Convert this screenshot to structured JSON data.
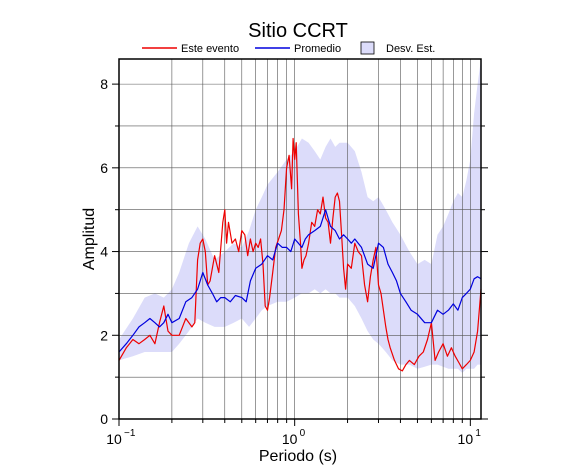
{
  "chart_data": {
    "type": "line",
    "title": "Sitio CCRT",
    "xlabel": "Periodo (s)",
    "ylabel": "Amplitud",
    "x_scale": "log",
    "xlim": [
      0.1,
      11.5
    ],
    "ylim": [
      0,
      8.6
    ],
    "x_ticks": [
      {
        "base": "10",
        "exp": "−1"
      },
      {
        "base": "10",
        "exp": "0"
      },
      {
        "base": "10",
        "exp": "1"
      }
    ],
    "y_ticks": [
      "0",
      "2",
      "4",
      "6",
      "8"
    ],
    "grid": true,
    "legend_position": "top",
    "legend": [
      {
        "label": "Este evento",
        "kind": "line",
        "color": "#ee0000"
      },
      {
        "label": "Promedio",
        "kind": "line",
        "color": "#0000dd"
      },
      {
        "label": "Desv. Est.",
        "kind": "patch",
        "color": "#dcdcfa"
      }
    ],
    "series": [
      {
        "name": "Este evento",
        "color": "#ee0000",
        "x": [
          0.1,
          0.11,
          0.12,
          0.13,
          0.14,
          0.15,
          0.16,
          0.17,
          0.18,
          0.19,
          0.2,
          0.22,
          0.24,
          0.26,
          0.27,
          0.28,
          0.29,
          0.3,
          0.31,
          0.32,
          0.33,
          0.35,
          0.37,
          0.39,
          0.4,
          0.41,
          0.42,
          0.44,
          0.46,
          0.48,
          0.5,
          0.52,
          0.54,
          0.56,
          0.58,
          0.6,
          0.62,
          0.64,
          0.66,
          0.68,
          0.7,
          0.72,
          0.75,
          0.78,
          0.81,
          0.84,
          0.87,
          0.9,
          0.93,
          0.96,
          0.98,
          1.0,
          1.02,
          1.05,
          1.08,
          1.1,
          1.13,
          1.16,
          1.2,
          1.25,
          1.3,
          1.35,
          1.4,
          1.45,
          1.5,
          1.55,
          1.6,
          1.65,
          1.7,
          1.75,
          1.8,
          1.85,
          1.9,
          1.95,
          2.0,
          2.1,
          2.2,
          2.3,
          2.4,
          2.5,
          2.6,
          2.7,
          2.8,
          2.9,
          3.0,
          3.1,
          3.2,
          3.3,
          3.4,
          3.5,
          3.7,
          3.9,
          4.1,
          4.3,
          4.5,
          4.8,
          5.1,
          5.4,
          5.7,
          6.0,
          6.3,
          6.6,
          7.0,
          7.4,
          7.8,
          8.2,
          8.6,
          9.0,
          9.5,
          10.0,
          10.5,
          11.0,
          11.5
        ],
        "y": [
          1.4,
          1.7,
          1.9,
          1.8,
          1.9,
          2.0,
          1.8,
          2.3,
          2.7,
          2.1,
          2.0,
          2.0,
          2.4,
          2.2,
          2.3,
          3.8,
          4.2,
          4.3,
          4.0,
          3.2,
          3.3,
          3.9,
          3.5,
          4.7,
          5.0,
          4.2,
          4.7,
          4.2,
          4.3,
          4.0,
          4.5,
          4.4,
          3.9,
          4.3,
          4.0,
          4.2,
          4.1,
          4.3,
          3.7,
          2.7,
          2.6,
          2.9,
          3.5,
          4.1,
          4.3,
          4.5,
          5.0,
          6.0,
          6.3,
          5.5,
          6.7,
          6.2,
          6.6,
          4.9,
          4.2,
          3.6,
          3.8,
          3.9,
          4.2,
          4.7,
          4.6,
          5.0,
          4.9,
          5.3,
          4.8,
          4.7,
          4.2,
          4.8,
          5.3,
          5.4,
          5.2,
          4.4,
          3.6,
          3.1,
          3.7,
          3.6,
          4.2,
          4.0,
          3.9,
          3.2,
          2.8,
          3.4,
          3.8,
          4.1,
          3.2,
          3.0,
          2.6,
          2.2,
          1.9,
          1.7,
          1.4,
          1.2,
          1.15,
          1.3,
          1.4,
          1.3,
          1.5,
          1.6,
          1.9,
          2.3,
          1.4,
          1.6,
          1.8,
          1.5,
          1.7,
          1.5,
          1.35,
          1.2,
          1.3,
          1.4,
          1.6,
          2.1,
          3.1
        ]
      },
      {
        "name": "Promedio",
        "color": "#0000dd",
        "x": [
          0.1,
          0.11,
          0.12,
          0.13,
          0.14,
          0.15,
          0.16,
          0.17,
          0.18,
          0.19,
          0.2,
          0.22,
          0.24,
          0.26,
          0.28,
          0.3,
          0.32,
          0.34,
          0.36,
          0.38,
          0.4,
          0.43,
          0.46,
          0.5,
          0.53,
          0.56,
          0.6,
          0.65,
          0.7,
          0.75,
          0.8,
          0.85,
          0.9,
          0.95,
          1.0,
          1.05,
          1.1,
          1.15,
          1.2,
          1.3,
          1.4,
          1.5,
          1.6,
          1.7,
          1.8,
          1.9,
          2.0,
          2.1,
          2.2,
          2.4,
          2.6,
          2.8,
          3.0,
          3.2,
          3.4,
          3.6,
          3.8,
          4.0,
          4.3,
          4.6,
          5.0,
          5.5,
          6.0,
          6.5,
          7.0,
          7.5,
          8.0,
          8.5,
          9.0,
          9.5,
          10.0,
          10.5,
          11.0,
          11.5
        ],
        "y": [
          1.6,
          1.8,
          2.0,
          2.2,
          2.3,
          2.4,
          2.3,
          2.2,
          2.3,
          2.5,
          2.3,
          2.4,
          2.8,
          2.9,
          3.1,
          3.5,
          3.2,
          3.0,
          2.8,
          2.9,
          2.9,
          2.8,
          2.95,
          2.9,
          2.8,
          3.3,
          3.6,
          3.7,
          3.9,
          3.8,
          4.2,
          4.1,
          4.1,
          4.0,
          4.3,
          4.2,
          4.1,
          4.3,
          4.4,
          4.5,
          4.6,
          5.0,
          4.6,
          4.5,
          4.3,
          4.4,
          4.3,
          4.2,
          4.3,
          4.1,
          3.7,
          3.6,
          4.2,
          4.1,
          3.7,
          3.5,
          3.3,
          3.0,
          2.8,
          2.6,
          2.5,
          2.3,
          2.3,
          2.6,
          2.5,
          2.6,
          2.75,
          2.6,
          2.9,
          3.0,
          3.1,
          3.35,
          3.4,
          3.35
        ]
      }
    ],
    "band": {
      "name": "Desv. Est.",
      "color": "#dcdcfa",
      "x": [
        0.1,
        0.12,
        0.14,
        0.16,
        0.18,
        0.2,
        0.22,
        0.25,
        0.28,
        0.31,
        0.35,
        0.4,
        0.45,
        0.5,
        0.55,
        0.6,
        0.65,
        0.7,
        0.8,
        0.9,
        1.0,
        1.1,
        1.2,
        1.3,
        1.4,
        1.5,
        1.6,
        1.7,
        1.8,
        2.0,
        2.2,
        2.4,
        2.6,
        2.8,
        3.0,
        3.3,
        3.6,
        4.0,
        4.5,
        5.0,
        5.5,
        6.0,
        6.5,
        7.0,
        7.5,
        8.0,
        8.5,
        9.0,
        9.5,
        10.0,
        10.5,
        11.0,
        11.5
      ],
      "upper": [
        1.9,
        2.4,
        2.9,
        3.0,
        2.9,
        3.1,
        3.5,
        4.2,
        4.6,
        4.3,
        3.8,
        4.0,
        4.2,
        4.1,
        4.5,
        5.0,
        5.3,
        5.6,
        5.9,
        6.2,
        6.4,
        6.7,
        6.6,
        6.4,
        6.2,
        6.5,
        6.7,
        6.5,
        6.6,
        6.6,
        6.4,
        5.9,
        5.3,
        5.2,
        5.3,
        5.0,
        4.7,
        4.4,
        4.0,
        3.7,
        3.8,
        3.7,
        4.4,
        4.6,
        4.9,
        5.2,
        5.4,
        5.3,
        5.7,
        6.2,
        7.3,
        8.0,
        8.6
      ],
      "lower": [
        1.4,
        1.5,
        1.6,
        1.6,
        1.6,
        1.6,
        1.8,
        2.1,
        2.4,
        2.3,
        2.2,
        2.2,
        2.3,
        2.4,
        2.2,
        2.4,
        2.6,
        2.7,
        2.8,
        2.8,
        2.9,
        3.0,
        3.0,
        3.1,
        3.0,
        3.1,
        3.0,
        3.0,
        2.9,
        2.9,
        2.7,
        2.4,
        2.1,
        1.9,
        1.8,
        1.6,
        1.4,
        1.3,
        1.3,
        1.2,
        1.25,
        1.3,
        1.3,
        1.25,
        1.2,
        1.2,
        1.2,
        1.1,
        1.2,
        1.2,
        1.2,
        1.3,
        1.3
      ]
    }
  }
}
